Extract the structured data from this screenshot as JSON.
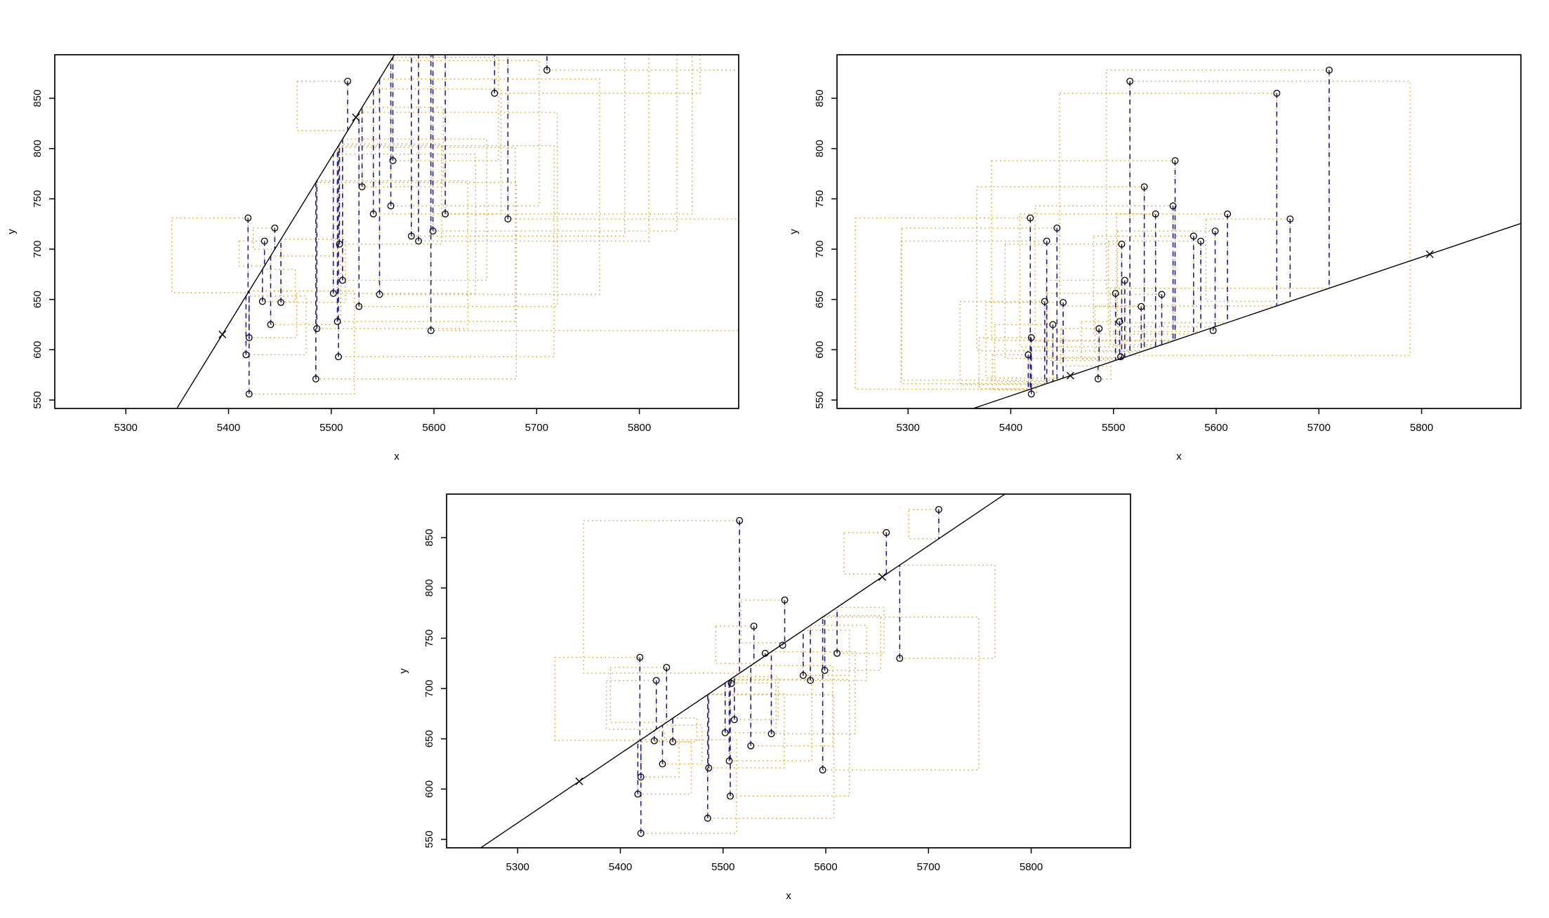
{
  "figure_title": "",
  "chart_data": {
    "type": "scatter",
    "xlabel": "x",
    "ylabel": "y",
    "xlim": [
      5230.8,
      5896.7
    ],
    "ylim": [
      541.6,
      893.3
    ],
    "xticks": [
      5300,
      5400,
      5500,
      5600,
      5700,
      5800
    ],
    "yticks": [
      550,
      600,
      650,
      700,
      750,
      800,
      850
    ],
    "grid": false,
    "legend": "none",
    "points": [
      [
        5710,
        878
      ],
      [
        5516,
        867
      ],
      [
        5659,
        855
      ],
      [
        5560,
        788
      ],
      [
        5530,
        762
      ],
      [
        5558,
        743
      ],
      [
        5541,
        735
      ],
      [
        5611,
        735
      ],
      [
        5419,
        731
      ],
      [
        5672,
        730
      ],
      [
        5445,
        721
      ],
      [
        5599,
        718
      ],
      [
        5578,
        713
      ],
      [
        5585,
        708
      ],
      [
        5435,
        708
      ],
      [
        5508,
        705
      ],
      [
        5511,
        669
      ],
      [
        5502,
        656
      ],
      [
        5547,
        655
      ],
      [
        5527,
        643
      ],
      [
        5433,
        648
      ],
      [
        5451,
        647
      ],
      [
        5597,
        619
      ],
      [
        5441,
        625
      ],
      [
        5486,
        621
      ],
      [
        5420,
        612
      ],
      [
        5507,
        593
      ],
      [
        5417,
        595
      ],
      [
        5485,
        571
      ],
      [
        5420,
        556
      ],
      [
        5506,
        628
      ]
    ],
    "panels": [
      {
        "id": "top-left",
        "line": {
          "slope": 1.66,
          "intercept": -8338.8
        },
        "marks_x": [
          5394,
          5524
        ],
        "flip_right": []
      },
      {
        "id": "top-right",
        "line": {
          "slope": 0.345,
          "intercept": -1308.8
        },
        "marks_x": [
          5458,
          5808
        ],
        "flip_right": [
          1
        ]
      },
      {
        "id": "bottom",
        "line": {
          "slope": 0.689,
          "intercept": -3085.3
        },
        "marks_x": [
          5360,
          5655
        ],
        "flip_right": []
      }
    ],
    "style": {
      "background": "#FFFFFF",
      "box_color": "#000000",
      "fit_line_color": "#000000",
      "point_color": "#000000",
      "residual_color": "#1F1F8F",
      "square_color": "#DFA520",
      "text_color": "#000000"
    }
  }
}
